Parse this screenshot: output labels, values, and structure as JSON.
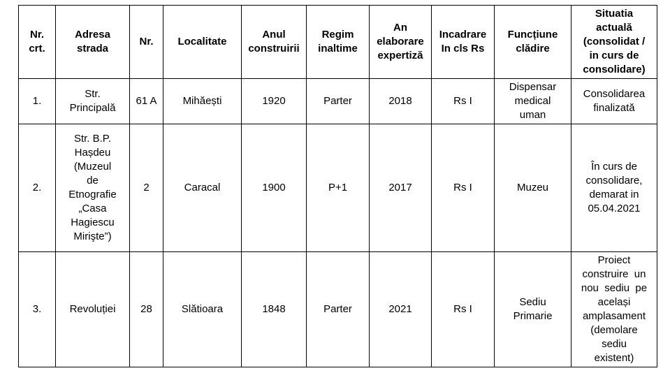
{
  "table": {
    "columns": [
      {
        "key": "nr_crt",
        "label": "Nr.\ncrt."
      },
      {
        "key": "adresa_strada",
        "label": "Adresa\nstrada"
      },
      {
        "key": "nr",
        "label": "Nr."
      },
      {
        "key": "localitate",
        "label": "Localitate"
      },
      {
        "key": "anul_construirii",
        "label": "Anul\nconstruirii"
      },
      {
        "key": "regim_inaltime",
        "label": "Regim\ninaltime"
      },
      {
        "key": "an_elaborare",
        "label": "An\nelaborare\nexpertiză"
      },
      {
        "key": "incadrare_cls_rs",
        "label": "Incadrare\nIn cls Rs"
      },
      {
        "key": "functiune_cladire",
        "label": "Funcțiune\nclădire"
      },
      {
        "key": "situatia_actuala",
        "label": "Situatia\nactuală\n(consolidat /\nin curs de\nconsolidare)"
      }
    ],
    "rows": [
      {
        "cells": [
          "1.",
          "Str.\nPrincipală",
          "61 A",
          "Mihăești",
          "1920",
          "Parter",
          "2018",
          "Rs I",
          "Dispensar\nmedical\numan",
          "Consolidarea\nfinalizată"
        ]
      },
      {
        "cells": [
          "2.",
          "Str. B.P.\nHașdeu\n(Muzeul\nde\nEtnografie\n„Casa\nHagiescu\nMirişte”)",
          "2",
          "Caracal",
          "1900",
          "P+1",
          "2017",
          "Rs I",
          "Muzeu",
          "În curs de\nconsolidare,\ndemarat in\n05.04.2021"
        ]
      },
      {
        "cells": [
          "3.",
          "Revoluției",
          "28",
          "Slătioara",
          "1848",
          "Parter",
          "2021",
          "Rs I",
          "Sediu\nPrimarie",
          "Proiect\nconstruire  un\nnou  sediu  pe\nacelași\namplasament\n(demolare\nsediu\nexistent)"
        ]
      }
    ],
    "colors": {
      "border": "#000000",
      "text": "#000000",
      "background": "#ffffff"
    }
  }
}
